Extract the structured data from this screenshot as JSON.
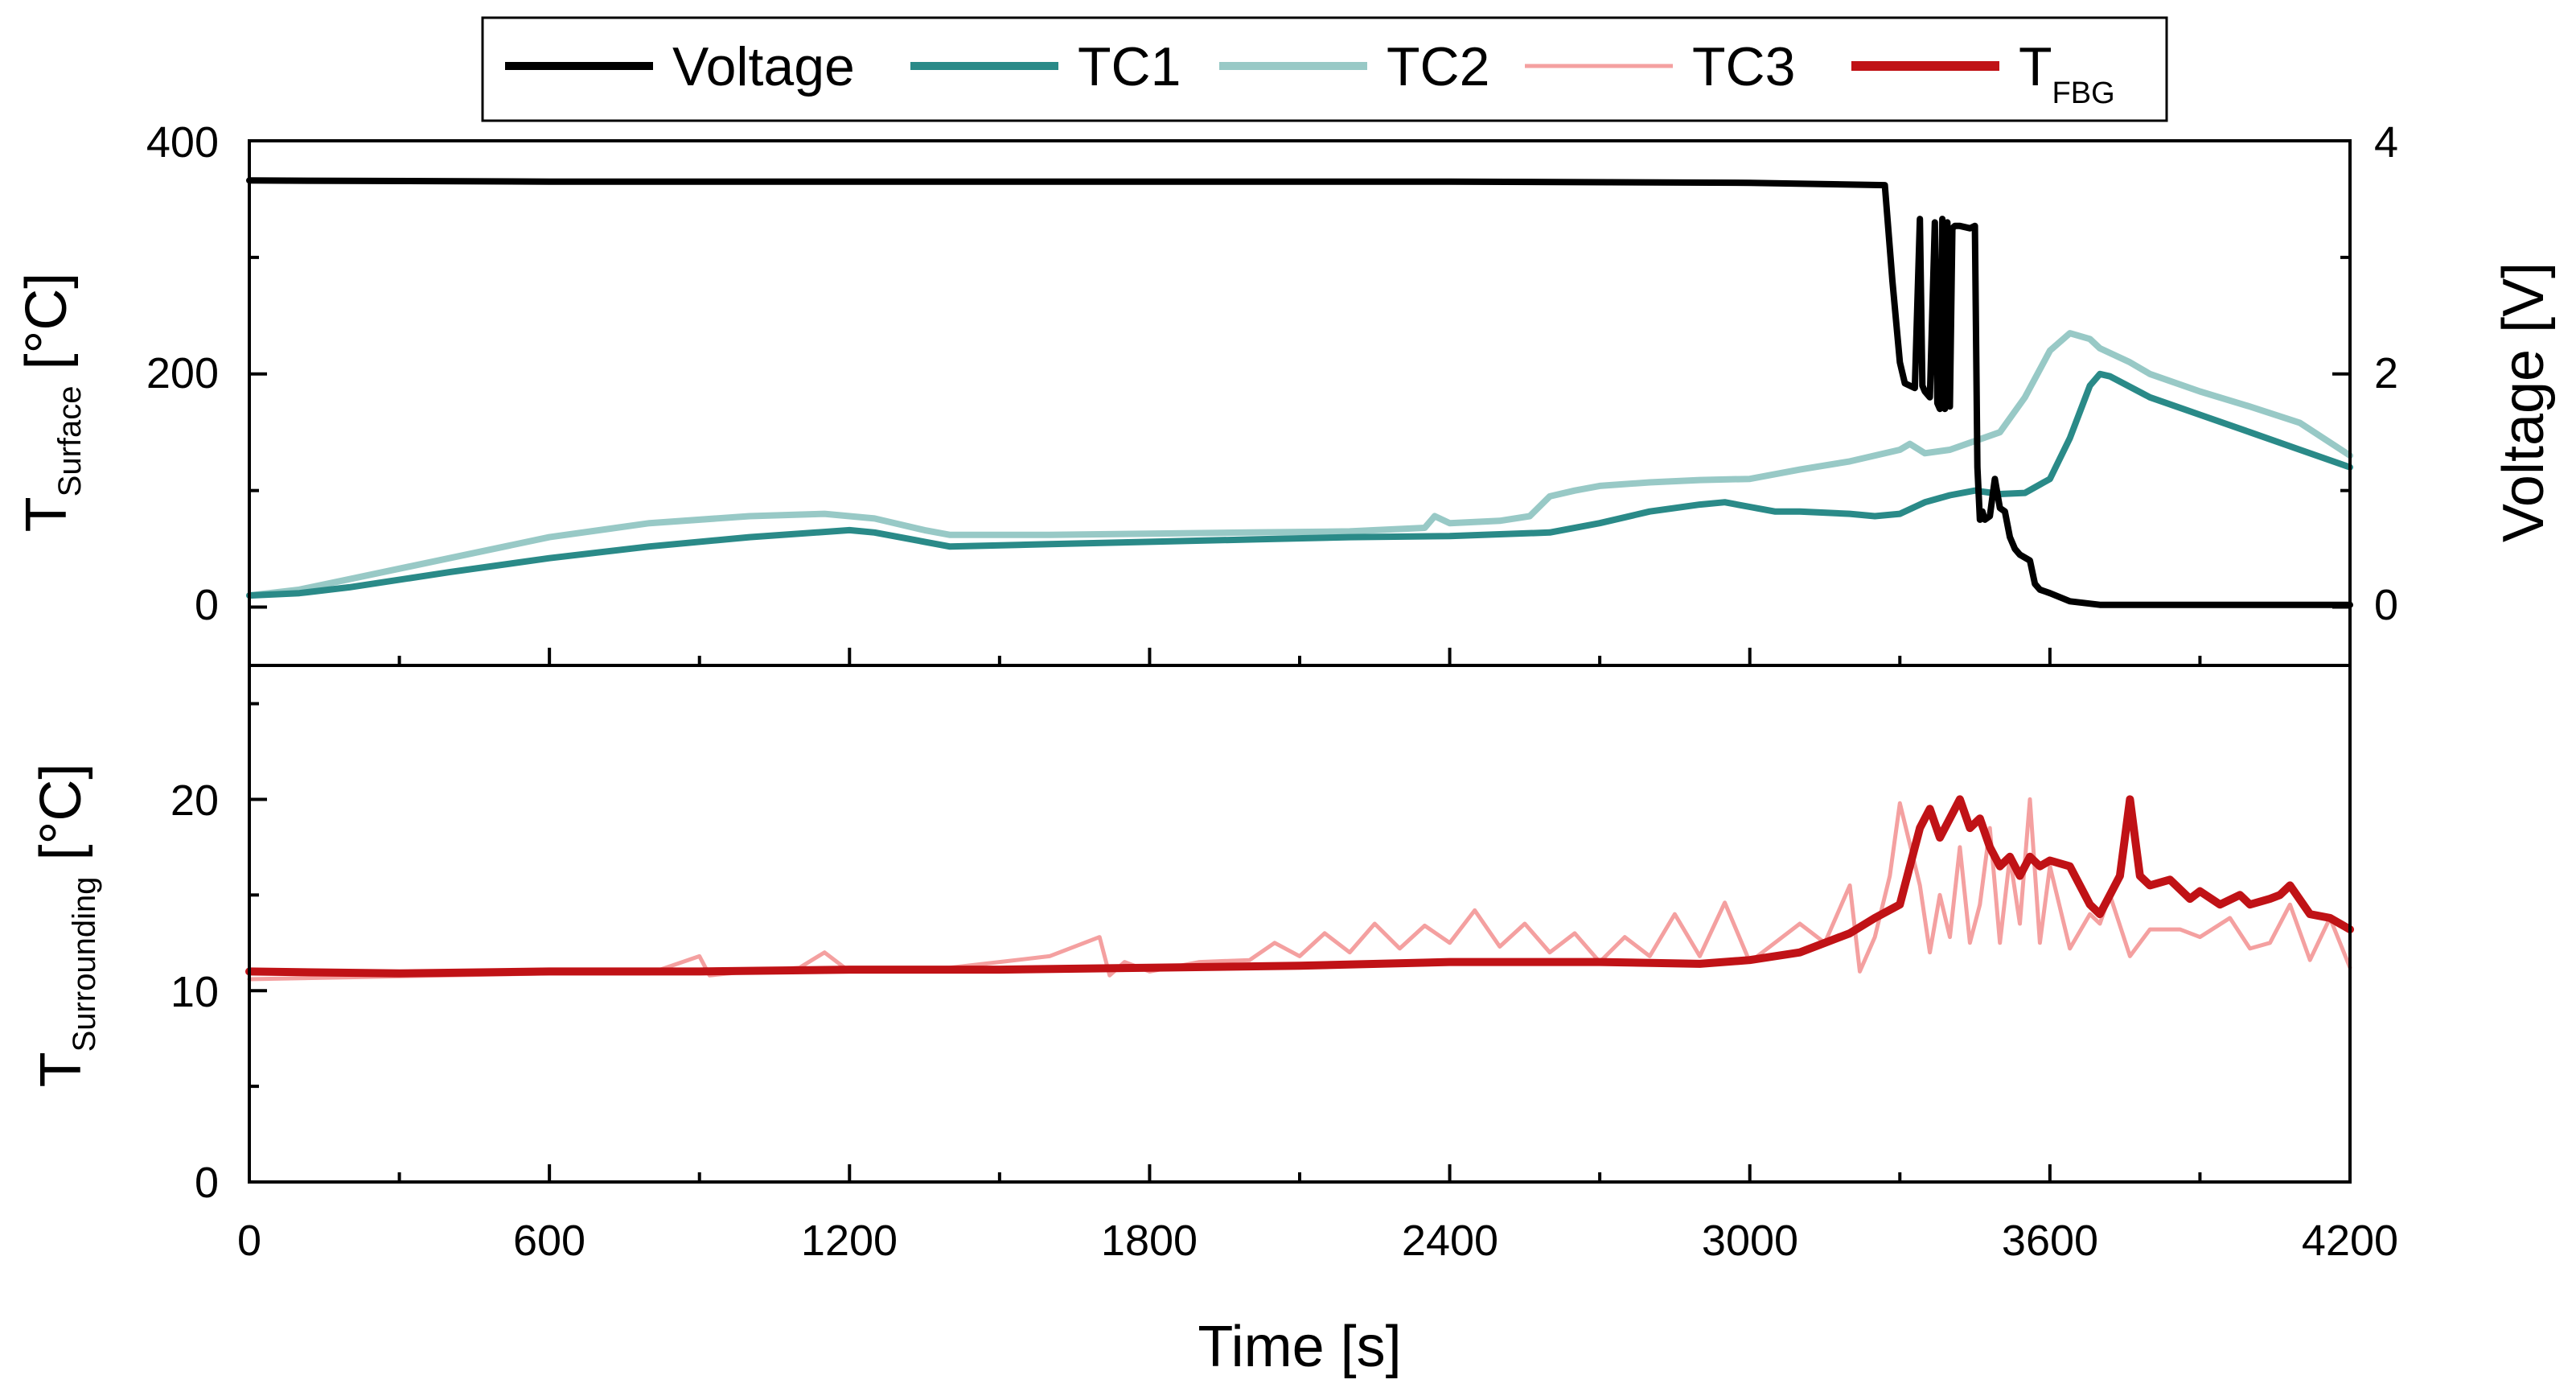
{
  "chart_data": {
    "type": "line",
    "x": {
      "label": "Time [s]",
      "range": [
        0,
        4200
      ],
      "ticks": [
        "0",
        "600",
        "1200",
        "1800",
        "2400",
        "3000",
        "3600",
        "4200"
      ]
    },
    "top_panel": {
      "ylabel_left": "T",
      "ylabel_left_sub": "Surface",
      "ylabel_left_unit": " [°C]",
      "ylim_left": [
        -50,
        400
      ],
      "yticks_left": [
        "0",
        "200",
        "400"
      ],
      "ylabel_right": "Voltage [V]",
      "ylim_right": [
        -0.5,
        4
      ],
      "yticks_right": [
        "0",
        "2",
        "4"
      ]
    },
    "bottom_panel": {
      "ylabel": "T",
      "ylabel_sub": "Surrounding",
      "ylabel_unit": " [°C]",
      "ylim": [
        0,
        27
      ],
      "yticks": [
        "0",
        "10",
        "20"
      ]
    },
    "legend": {
      "position": "top-center",
      "entries": [
        {
          "label": "Voltage",
          "sub": "",
          "color": "#000000"
        },
        {
          "label": "TC1",
          "sub": "",
          "color": "#2a8a88"
        },
        {
          "label": "TC2",
          "sub": "",
          "color": "#98c9c6"
        },
        {
          "label": "TC3",
          "sub": "",
          "color": "#f4a0a0"
        },
        {
          "label": "T",
          "sub": "FBG",
          "color": "#c01216"
        }
      ]
    },
    "series": [
      {
        "name": "Voltage",
        "panel": "top",
        "axis": "right",
        "color": "#000000",
        "width": 8,
        "x": [
          0,
          600,
          1200,
          1800,
          2400,
          3000,
          3270,
          3285,
          3300,
          3310,
          3330,
          3340,
          3345,
          3350,
          3360,
          3370,
          3375,
          3380,
          3385,
          3390,
          3395,
          3400,
          3405,
          3410,
          3420,
          3440,
          3450,
          3455,
          3460,
          3465,
          3470,
          3480,
          3490,
          3500,
          3510,
          3520,
          3530,
          3540,
          3560,
          3570,
          3580,
          3600,
          3640,
          3700,
          3800,
          4000,
          4200
        ],
        "y": [
          3.66,
          3.65,
          3.65,
          3.65,
          3.65,
          3.64,
          3.62,
          2.8,
          2.1,
          1.92,
          1.88,
          3.33,
          1.9,
          1.85,
          1.8,
          3.3,
          1.75,
          1.7,
          3.33,
          1.7,
          3.3,
          1.72,
          3.25,
          3.27,
          3.27,
          3.25,
          3.27,
          1.2,
          0.75,
          0.82,
          0.75,
          0.78,
          1.1,
          0.85,
          0.82,
          0.6,
          0.5,
          0.45,
          0.4,
          0.2,
          0.15,
          0.12,
          0.05,
          0.02,
          0.02,
          0.02,
          0.02
        ]
      },
      {
        "name": "TC1",
        "panel": "top",
        "axis": "left",
        "color": "#2a8a88",
        "width": 8,
        "x": [
          0,
          100,
          200,
          400,
          600,
          800,
          1000,
          1200,
          1250,
          1350,
          1400,
          1600,
          1800,
          2000,
          2200,
          2400,
          2600,
          2700,
          2800,
          2900,
          2950,
          3000,
          3050,
          3100,
          3200,
          3250,
          3300,
          3350,
          3400,
          3450,
          3500,
          3550,
          3600,
          3640,
          3680,
          3700,
          3720,
          3800,
          3900,
          4000,
          4100,
          4200
        ],
        "y": [
          10,
          12,
          17,
          30,
          42,
          52,
          60,
          66,
          64,
          56,
          52,
          54,
          56,
          58,
          60,
          61,
          64,
          72,
          82,
          88,
          90,
          86,
          82,
          82,
          80,
          78,
          80,
          90,
          96,
          100,
          97,
          98,
          110,
          145,
          190,
          200,
          198,
          180,
          165,
          150,
          135,
          120
        ]
      },
      {
        "name": "TC2",
        "panel": "top",
        "axis": "left",
        "color": "#98c9c6",
        "width": 8,
        "x": [
          0,
          100,
          200,
          400,
          600,
          800,
          1000,
          1150,
          1250,
          1350,
          1400,
          1600,
          1800,
          2000,
          2200,
          2350,
          2370,
          2400,
          2500,
          2560,
          2600,
          2650,
          2700,
          2800,
          2900,
          3000,
          3100,
          3200,
          3300,
          3320,
          3350,
          3400,
          3500,
          3550,
          3600,
          3640,
          3680,
          3700,
          3760,
          3800,
          3900,
          4000,
          4100,
          4200
        ],
        "y": [
          10,
          15,
          24,
          42,
          60,
          72,
          78,
          80,
          76,
          66,
          62,
          62,
          63,
          64,
          65,
          68,
          78,
          72,
          74,
          78,
          95,
          100,
          104,
          107,
          109,
          110,
          118,
          125,
          135,
          140,
          132,
          135,
          150,
          180,
          220,
          235,
          230,
          222,
          210,
          200,
          185,
          172,
          158,
          130
        ]
      },
      {
        "name": "TC3",
        "panel": "bottom",
        "axis": "left",
        "color": "#f4a0a0",
        "width": 5,
        "x": [
          0,
          200,
          400,
          600,
          800,
          900,
          920,
          1000,
          1100,
          1150,
          1200,
          1400,
          1500,
          1600,
          1700,
          1720,
          1750,
          1800,
          1900,
          2000,
          2050,
          2100,
          2150,
          2200,
          2250,
          2300,
          2350,
          2400,
          2450,
          2500,
          2550,
          2600,
          2650,
          2700,
          2750,
          2800,
          2850,
          2900,
          2950,
          3000,
          3050,
          3100,
          3150,
          3200,
          3220,
          3250,
          3280,
          3300,
          3340,
          3360,
          3380,
          3400,
          3420,
          3440,
          3460,
          3480,
          3500,
          3520,
          3540,
          3560,
          3580,
          3600,
          3640,
          3680,
          3700,
          3720,
          3760,
          3800,
          3860,
          3900,
          3960,
          4000,
          4040,
          4080,
          4120,
          4160,
          4200
        ],
        "y": [
          10.6,
          10.7,
          10.8,
          10.9,
          10.9,
          11.8,
          10.8,
          11,
          11.2,
          12,
          11,
          11.2,
          11.5,
          11.8,
          12.8,
          10.8,
          11.5,
          11,
          11.5,
          11.6,
          12.5,
          11.8,
          13,
          12,
          13.5,
          12.2,
          13.4,
          12.5,
          14.2,
          12.3,
          13.5,
          12,
          13,
          11.5,
          12.8,
          11.8,
          14,
          11.8,
          14.6,
          11.5,
          12.5,
          13.5,
          12.5,
          15.5,
          11,
          12.8,
          16,
          19.8,
          15.5,
          12,
          15,
          12.8,
          17.5,
          12.5,
          14.5,
          18.5,
          12.5,
          17,
          13.5,
          20,
          12.5,
          16.5,
          12.2,
          14,
          13.5,
          15,
          11.8,
          13.2,
          13.2,
          12.8,
          13.8,
          12.2,
          12.5,
          14.5,
          11.6,
          13.8,
          11.2
        ]
      },
      {
        "name": "T_FBG",
        "panel": "bottom",
        "axis": "left",
        "color": "#c01216",
        "width": 10,
        "x": [
          0,
          300,
          600,
          900,
          1200,
          1500,
          1800,
          2100,
          2400,
          2700,
          2900,
          3000,
          3100,
          3150,
          3200,
          3250,
          3300,
          3320,
          3340,
          3360,
          3380,
          3400,
          3420,
          3440,
          3460,
          3480,
          3500,
          3520,
          3540,
          3560,
          3580,
          3600,
          3640,
          3680,
          3700,
          3720,
          3740,
          3760,
          3780,
          3800,
          3840,
          3880,
          3900,
          3940,
          3980,
          4000,
          4040,
          4060,
          4080,
          4120,
          4160,
          4200
        ],
        "y": [
          11,
          10.9,
          11,
          11,
          11.1,
          11.1,
          11.2,
          11.3,
          11.5,
          11.5,
          11.4,
          11.6,
          12,
          12.5,
          13,
          13.8,
          14.5,
          16.5,
          18.5,
          19.5,
          18,
          19,
          20,
          18.5,
          19,
          17.5,
          16.5,
          17,
          16,
          17,
          16.5,
          16.8,
          16.5,
          14.5,
          14,
          15,
          16,
          20,
          16,
          15.5,
          15.8,
          14.8,
          15.2,
          14.5,
          15,
          14.5,
          14.8,
          15,
          15.5,
          14,
          13.8,
          13.2
        ]
      }
    ]
  }
}
